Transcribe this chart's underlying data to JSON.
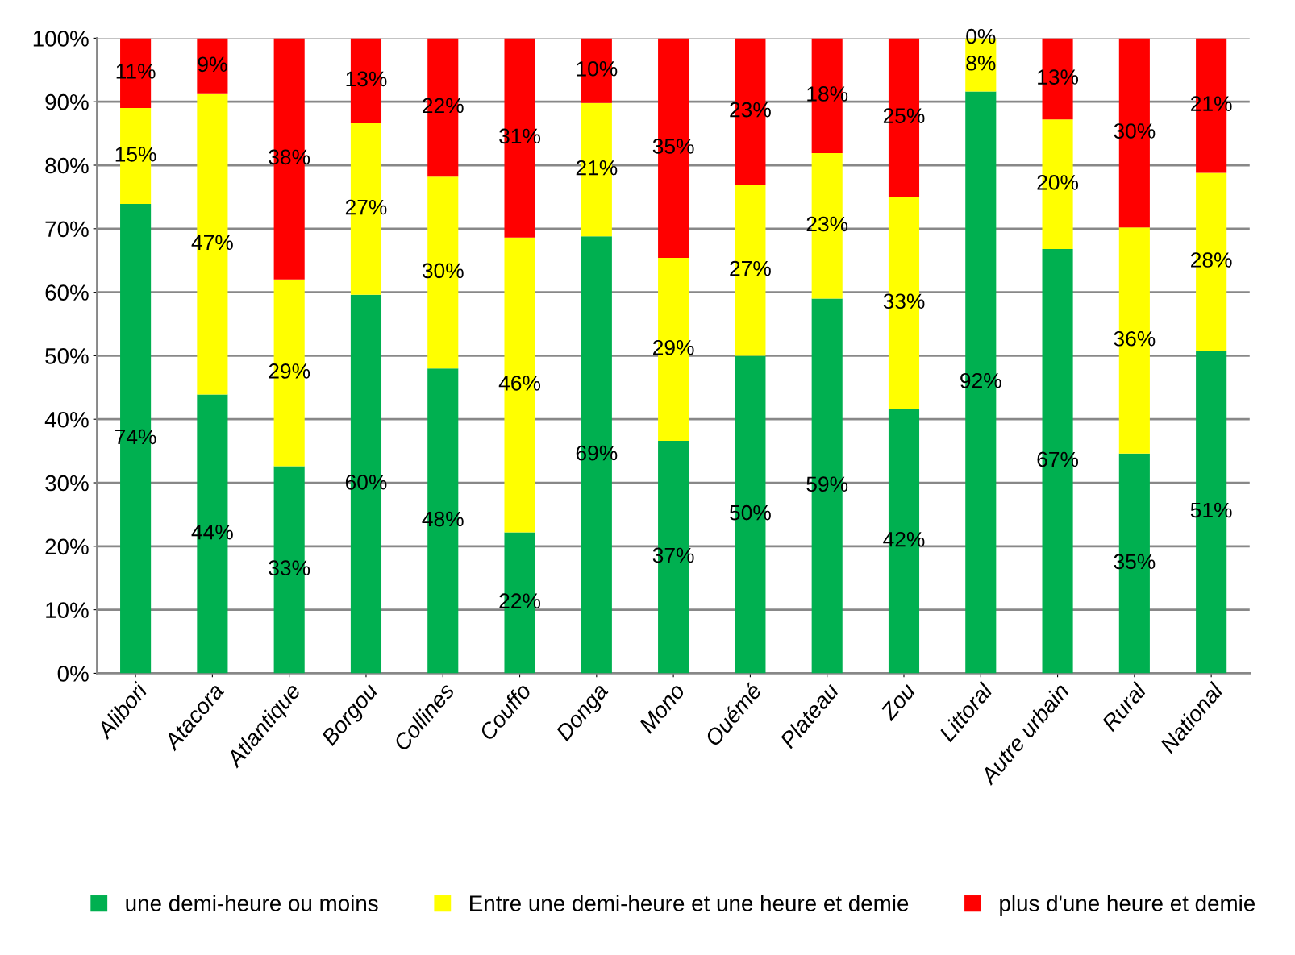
{
  "chart_data": {
    "type": "bar",
    "stacked": true,
    "categories": [
      "Alibori",
      "Atacora",
      "Atlantique",
      "Borgou",
      "Collines",
      "Couffo",
      "Donga",
      "Mono",
      "Ouémé",
      "Plateau",
      "Zou",
      "Littoral",
      "Autre urbain",
      "Rural",
      "National"
    ],
    "series": [
      {
        "name": "une demi-heure ou moins",
        "color": "#00b050",
        "values": [
          73.9,
          43.9,
          32.6,
          59.6,
          48.0,
          22.2,
          68.8,
          36.6,
          50.0,
          59.0,
          41.6,
          91.6,
          66.8,
          34.6,
          50.8
        ],
        "value_labels": [
          "74%",
          "44%",
          "33%",
          "60%",
          "48%",
          "22%",
          "69%",
          "37%",
          "50%",
          "59%",
          "42%",
          "92%",
          "67%",
          "35%",
          "51%"
        ]
      },
      {
        "name": "Entre une demi-heure et une heure et demie",
        "color": "#ffff00",
        "values": [
          15.1,
          47.3,
          29.4,
          27.0,
          30.2,
          46.4,
          21.0,
          28.8,
          26.9,
          22.9,
          33.4,
          8.4,
          20.4,
          35.6,
          28.0
        ],
        "value_labels": [
          "15%",
          "47%",
          "29%",
          "27%",
          "30%",
          "46%",
          "21%",
          "29%",
          "27%",
          "23%",
          "33%",
          "8%",
          "20%",
          "36%",
          "28%"
        ]
      },
      {
        "name": "plus d'une heure et demie",
        "color": "#ff0000",
        "values": [
          11.0,
          8.8,
          38.0,
          13.4,
          21.8,
          31.4,
          10.2,
          34.6,
          23.1,
          18.1,
          25.0,
          0.0,
          12.8,
          29.8,
          21.2
        ],
        "value_labels": [
          "11%",
          "9%",
          "38%",
          "13%",
          "22%",
          "31%",
          "10%",
          "35%",
          "23%",
          "18%",
          "25%",
          "0%",
          "13%",
          "30%",
          "21%"
        ]
      }
    ],
    "ylim": [
      0,
      100
    ],
    "yticks": [
      {
        "value": 0,
        "label": "0%"
      },
      {
        "value": 10,
        "label": "10%"
      },
      {
        "value": 20,
        "label": "20%"
      },
      {
        "value": 30,
        "label": "30%"
      },
      {
        "value": 40,
        "label": "40%"
      },
      {
        "value": 50,
        "label": "50%"
      },
      {
        "value": 60,
        "label": "60%"
      },
      {
        "value": 70,
        "label": "70%"
      },
      {
        "value": 80,
        "label": "80%"
      },
      {
        "value": 90,
        "label": "90%"
      },
      {
        "value": 100,
        "label": "100%"
      }
    ],
    "grid": "y",
    "legend": "bottom"
  }
}
